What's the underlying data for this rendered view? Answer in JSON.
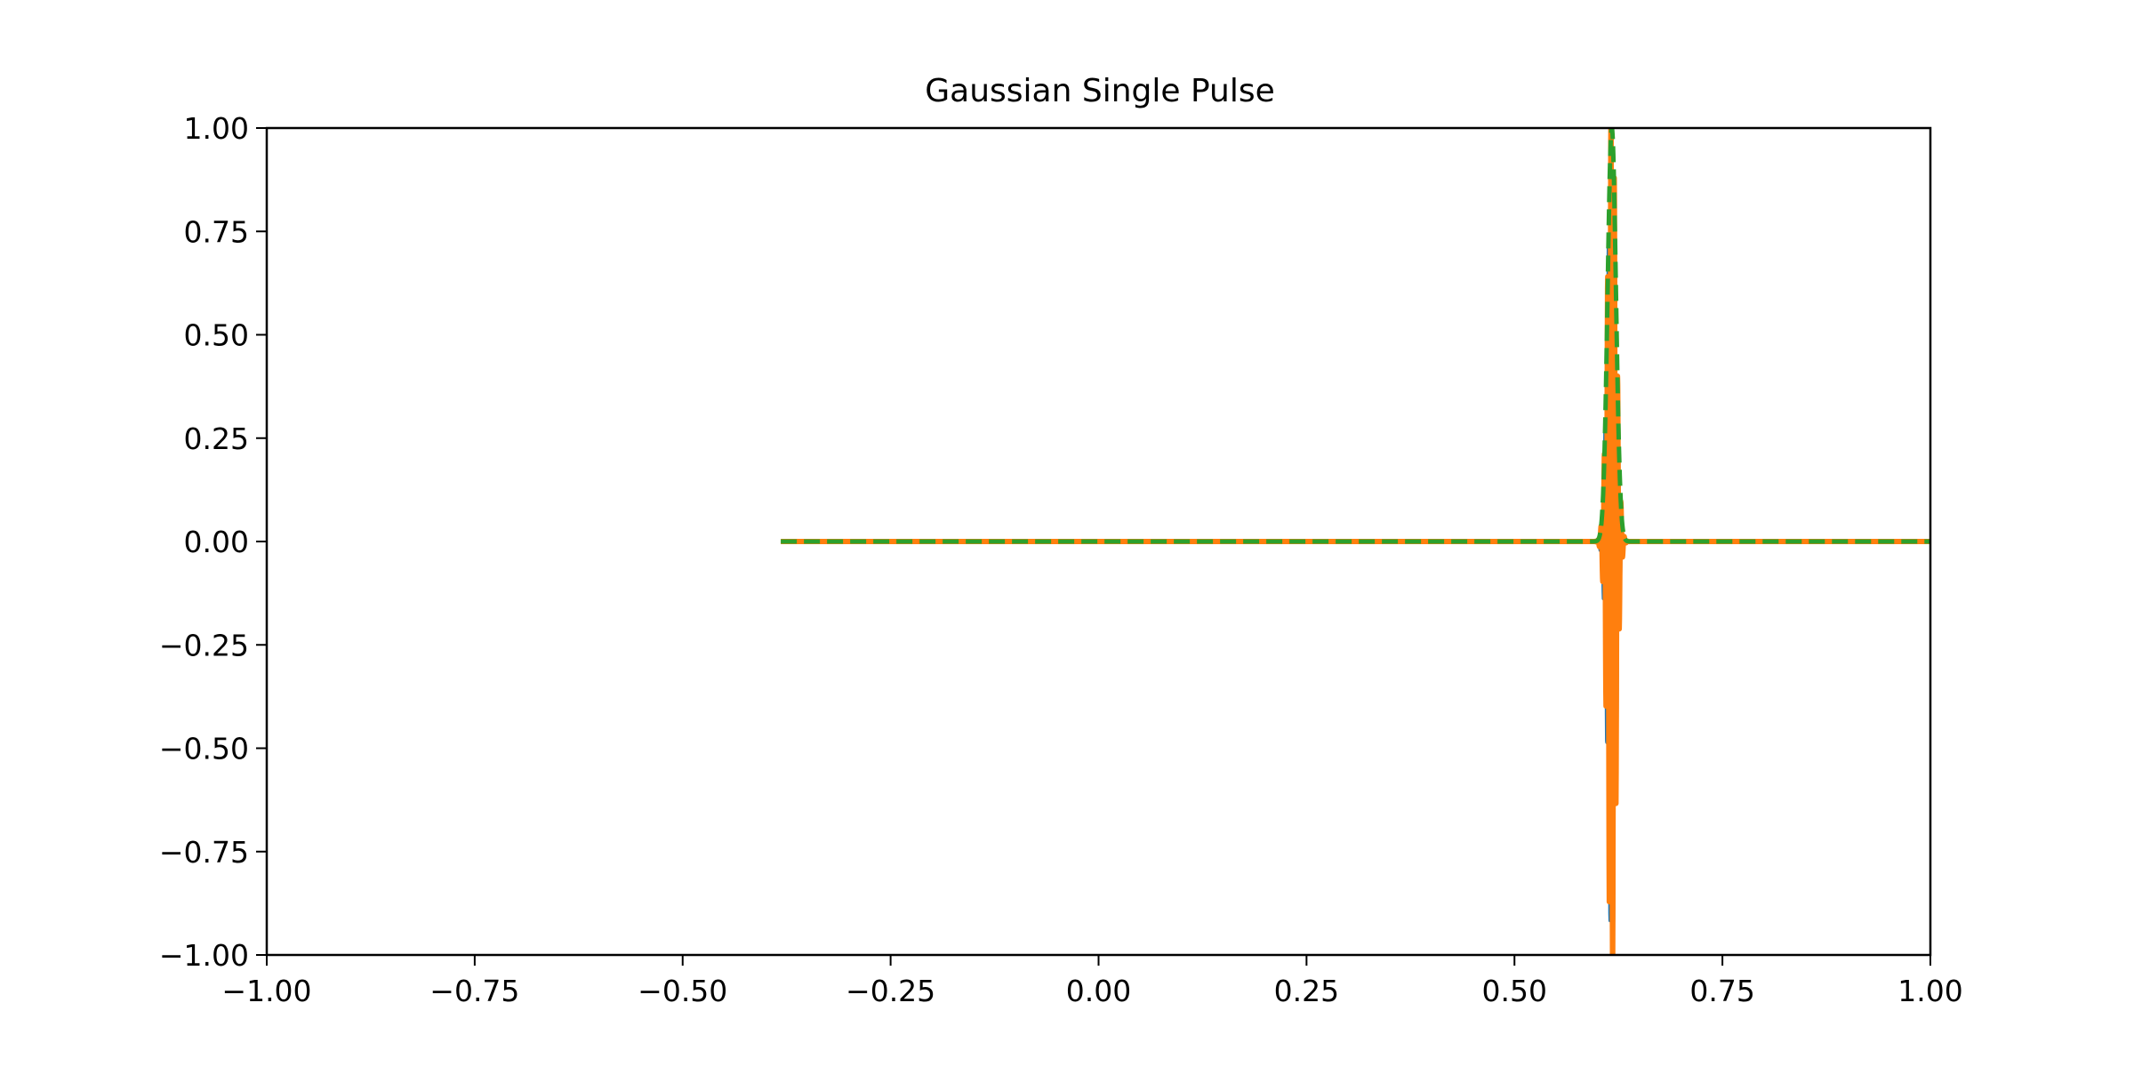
{
  "chart_data": {
    "type": "line",
    "title": "Gaussian Single Pulse",
    "xlabel": "",
    "ylabel": "",
    "xlim": [
      -1.0,
      1.0
    ],
    "ylim": [
      -1.0,
      1.0
    ],
    "grid": false,
    "legend": "none",
    "x_ticks": [
      "−1.00",
      "−0.75",
      "−0.50",
      "−0.25",
      "0.00",
      "0.25",
      "0.50",
      "0.75",
      "1.00"
    ],
    "y_ticks": [
      "1.00",
      "0.75",
      "0.50",
      "0.25",
      "0.00",
      "−0.25",
      "−0.50",
      "−0.75",
      "−1.00"
    ],
    "x_tick_values": [
      -1.0,
      -0.75,
      -0.5,
      -0.25,
      0.0,
      0.25,
      0.5,
      0.75,
      1.0
    ],
    "y_tick_values": [
      1.0,
      0.75,
      0.5,
      0.25,
      0.0,
      -0.25,
      -0.5,
      -0.75,
      -1.0
    ],
    "x_range": [
      -0.382,
      1.0
    ],
    "pulse": {
      "center": 0.617,
      "envelope_sigma": 0.005,
      "carrier_period": 0.004
    },
    "series": [
      {
        "color": "#1f77b4",
        "style": "solid",
        "component": "real"
      },
      {
        "color": "#ff7f0e",
        "style": "solid",
        "component": "imag"
      },
      {
        "color": "#2ca02c",
        "style": "dashed",
        "component": "envelope"
      }
    ]
  }
}
